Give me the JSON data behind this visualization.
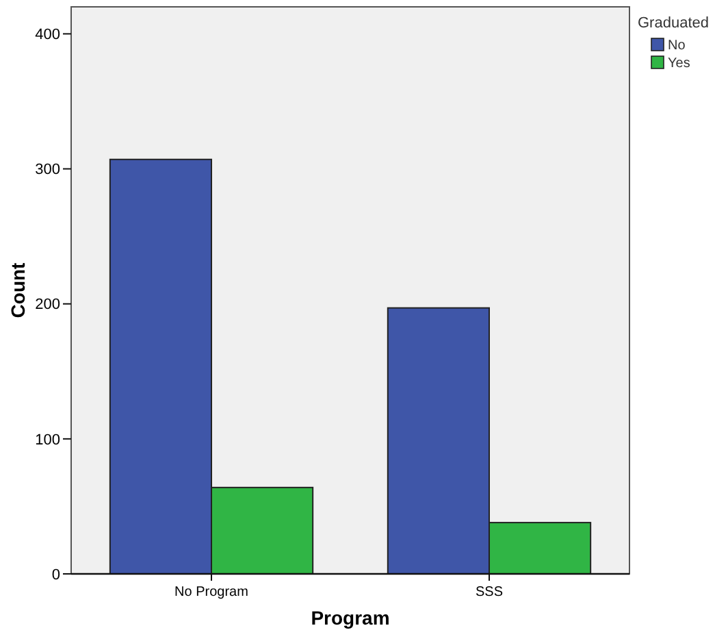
{
  "chart_data": {
    "type": "bar",
    "xlabel": "Program",
    "ylabel": "Count",
    "legend_title": "Graduated",
    "categories": [
      "No Program",
      "SSS"
    ],
    "series": [
      {
        "name": "No",
        "color": "#3f56a8",
        "values": [
          307,
          197
        ]
      },
      {
        "name": "Yes",
        "color": "#30b545",
        "values": [
          64,
          38
        ]
      }
    ],
    "ylim": [
      0,
      420
    ],
    "yticks": [
      0,
      100,
      200,
      300,
      400
    ],
    "grid": false,
    "legend": "top right"
  }
}
